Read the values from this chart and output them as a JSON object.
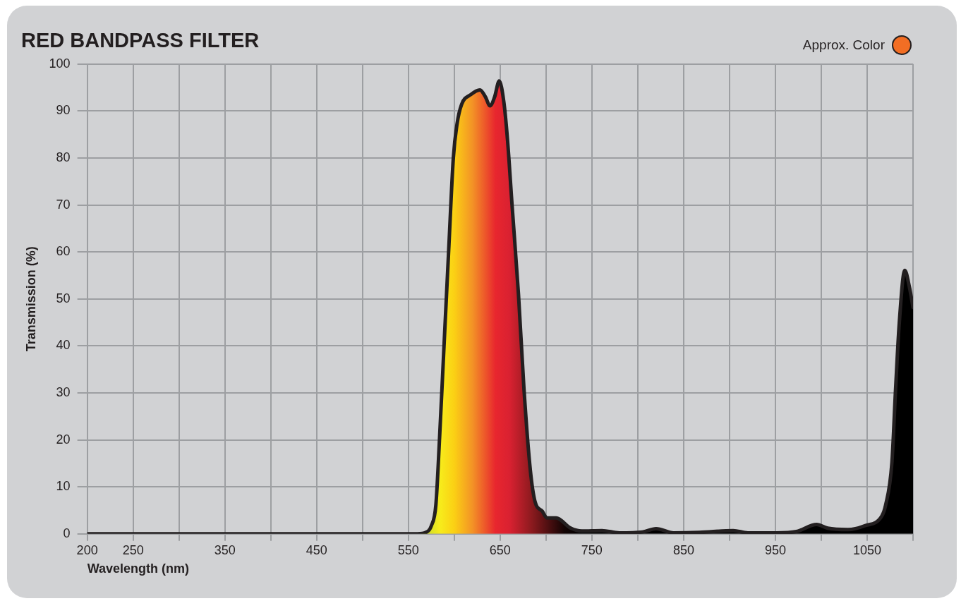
{
  "chart_data": {
    "type": "area",
    "title": "RED BANDPASS FILTER",
    "xlabel": "Wavelength (nm)",
    "ylabel": "Transmission (%)",
    "annotations": [
      "Approx. Color"
    ],
    "x": [
      200,
      560,
      569,
      575,
      580,
      584,
      589,
      594,
      599,
      603,
      608,
      618,
      628,
      634,
      639,
      644,
      649,
      654,
      658,
      663,
      670,
      676,
      683,
      688,
      696,
      701,
      711,
      727,
      739,
      761,
      780,
      805,
      820,
      839,
      867,
      904,
      920,
      951,
      973,
      995,
      1007,
      1029,
      1047,
      1066,
      1070,
      1077,
      1081,
      1085,
      1091,
      1096,
      1100
    ],
    "series": [
      {
        "color": "#231f20",
        "values": [
          0,
          0,
          0.3,
          1.7,
          6.2,
          20.4,
          40.6,
          60.6,
          80,
          87.2,
          91.4,
          93.5,
          94.5,
          93,
          91.1,
          93,
          96.4,
          92,
          84,
          70,
          51,
          30.8,
          13.4,
          6.9,
          4.8,
          3.4,
          3.4,
          1.2,
          0.6,
          0.7,
          0.2,
          0.4,
          1.1,
          0.2,
          0.3,
          0.7,
          0.2,
          0.2,
          0.5,
          2,
          1.2,
          0.9,
          1.7,
          3.8,
          6,
          15.2,
          30.8,
          44.8,
          56.1,
          52.6,
          48.2
        ]
      }
    ],
    "xlim": [
      200,
      1100
    ],
    "ylim": [
      0,
      100
    ],
    "xticks": [
      200,
      250,
      {
        "value": 300,
        "label": null
      },
      350,
      {
        "value": 400,
        "label": null
      },
      450,
      {
        "value": 500,
        "label": null
      },
      550,
      {
        "value": 600,
        "label": null
      },
      650,
      {
        "value": 700,
        "label": null
      },
      750,
      {
        "value": 800,
        "label": null
      },
      850,
      {
        "value": 900,
        "label": null
      },
      950,
      {
        "value": 1000,
        "label": null
      },
      1050,
      {
        "value": 1100,
        "label": null
      }
    ],
    "yticks": [
      0,
      10,
      20,
      30,
      40,
      50,
      60,
      70,
      80,
      90,
      100
    ],
    "grid": true,
    "legend": false,
    "line_style": "solid",
    "marker": "none"
  }
}
